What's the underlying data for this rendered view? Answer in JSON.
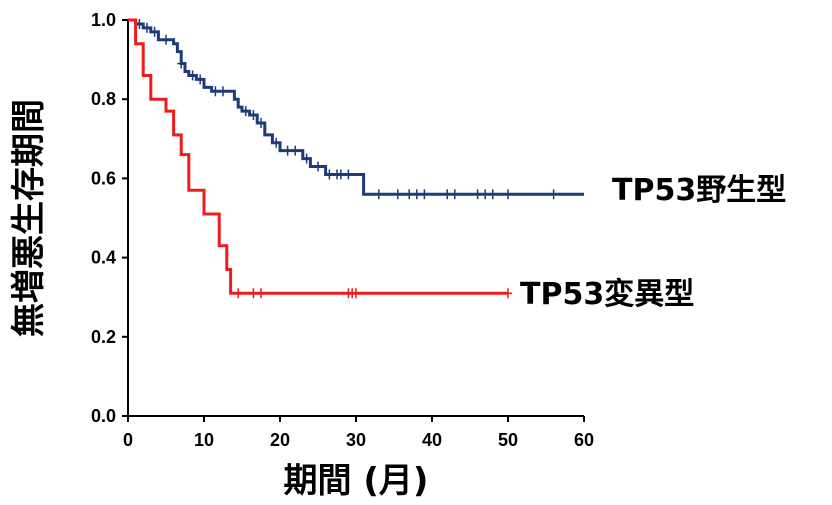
{
  "chart_data": {
    "type": "line",
    "subtype": "kaplan-meier",
    "xlabel": "期間 (月)",
    "ylabel": "無増悪生存期間",
    "xlim": [
      0,
      60
    ],
    "ylim": [
      0,
      1.0
    ],
    "x_ticks": [
      0,
      10,
      20,
      30,
      40,
      50,
      60
    ],
    "x_tick_labels": [
      "0",
      "10",
      "20",
      "30",
      "40",
      "50",
      "60"
    ],
    "y_ticks": [
      0,
      0.2,
      0.4,
      0.6,
      0.8,
      1.0
    ],
    "y_tick_labels": [
      "0.0",
      "0.2",
      "0.4",
      "0.6",
      "0.8",
      "1.0"
    ],
    "grid": false,
    "legend": "direct labels at right end of curves",
    "series": [
      {
        "name": "TP53野生型",
        "color": "#1f3a7a",
        "steps": [
          [
            0,
            1.0
          ],
          [
            1,
            0.99
          ],
          [
            2,
            0.98
          ],
          [
            3,
            0.97
          ],
          [
            4,
            0.95
          ],
          [
            6,
            0.94
          ],
          [
            6.5,
            0.92
          ],
          [
            7,
            0.89
          ],
          [
            7.5,
            0.87
          ],
          [
            8,
            0.86
          ],
          [
            9,
            0.85
          ],
          [
            10,
            0.83
          ],
          [
            11,
            0.82
          ],
          [
            14,
            0.8
          ],
          [
            14.5,
            0.78
          ],
          [
            15,
            0.77
          ],
          [
            16,
            0.76
          ],
          [
            17,
            0.74
          ],
          [
            18,
            0.71
          ],
          [
            19,
            0.69
          ],
          [
            20,
            0.67
          ],
          [
            23,
            0.65
          ],
          [
            24,
            0.63
          ],
          [
            26,
            0.61
          ],
          [
            31,
            0.56
          ],
          [
            60,
            0.56
          ]
        ],
        "censored": [
          1.5,
          2.5,
          3.5,
          5,
          7,
          8.5,
          9.5,
          11.5,
          12.5,
          15.5,
          16.5,
          17.5,
          19.5,
          21,
          22,
          23.5,
          25,
          26.5,
          27.5,
          28,
          29,
          33,
          35.5,
          37,
          38,
          39,
          42,
          43,
          46,
          47,
          48,
          50,
          56
        ]
      },
      {
        "name": "TP53変異型",
        "color": "#ee1c1c",
        "steps": [
          [
            0,
            1.0
          ],
          [
            1,
            0.94
          ],
          [
            2,
            0.86
          ],
          [
            3,
            0.8
          ],
          [
            5,
            0.77
          ],
          [
            6,
            0.71
          ],
          [
            7,
            0.66
          ],
          [
            8,
            0.57
          ],
          [
            10,
            0.51
          ],
          [
            12,
            0.43
          ],
          [
            13,
            0.37
          ],
          [
            13.5,
            0.31
          ],
          [
            50,
            0.31
          ]
        ],
        "censored": [
          14.5,
          16.5,
          17.5,
          29,
          29.5,
          30,
          50
        ]
      }
    ]
  }
}
